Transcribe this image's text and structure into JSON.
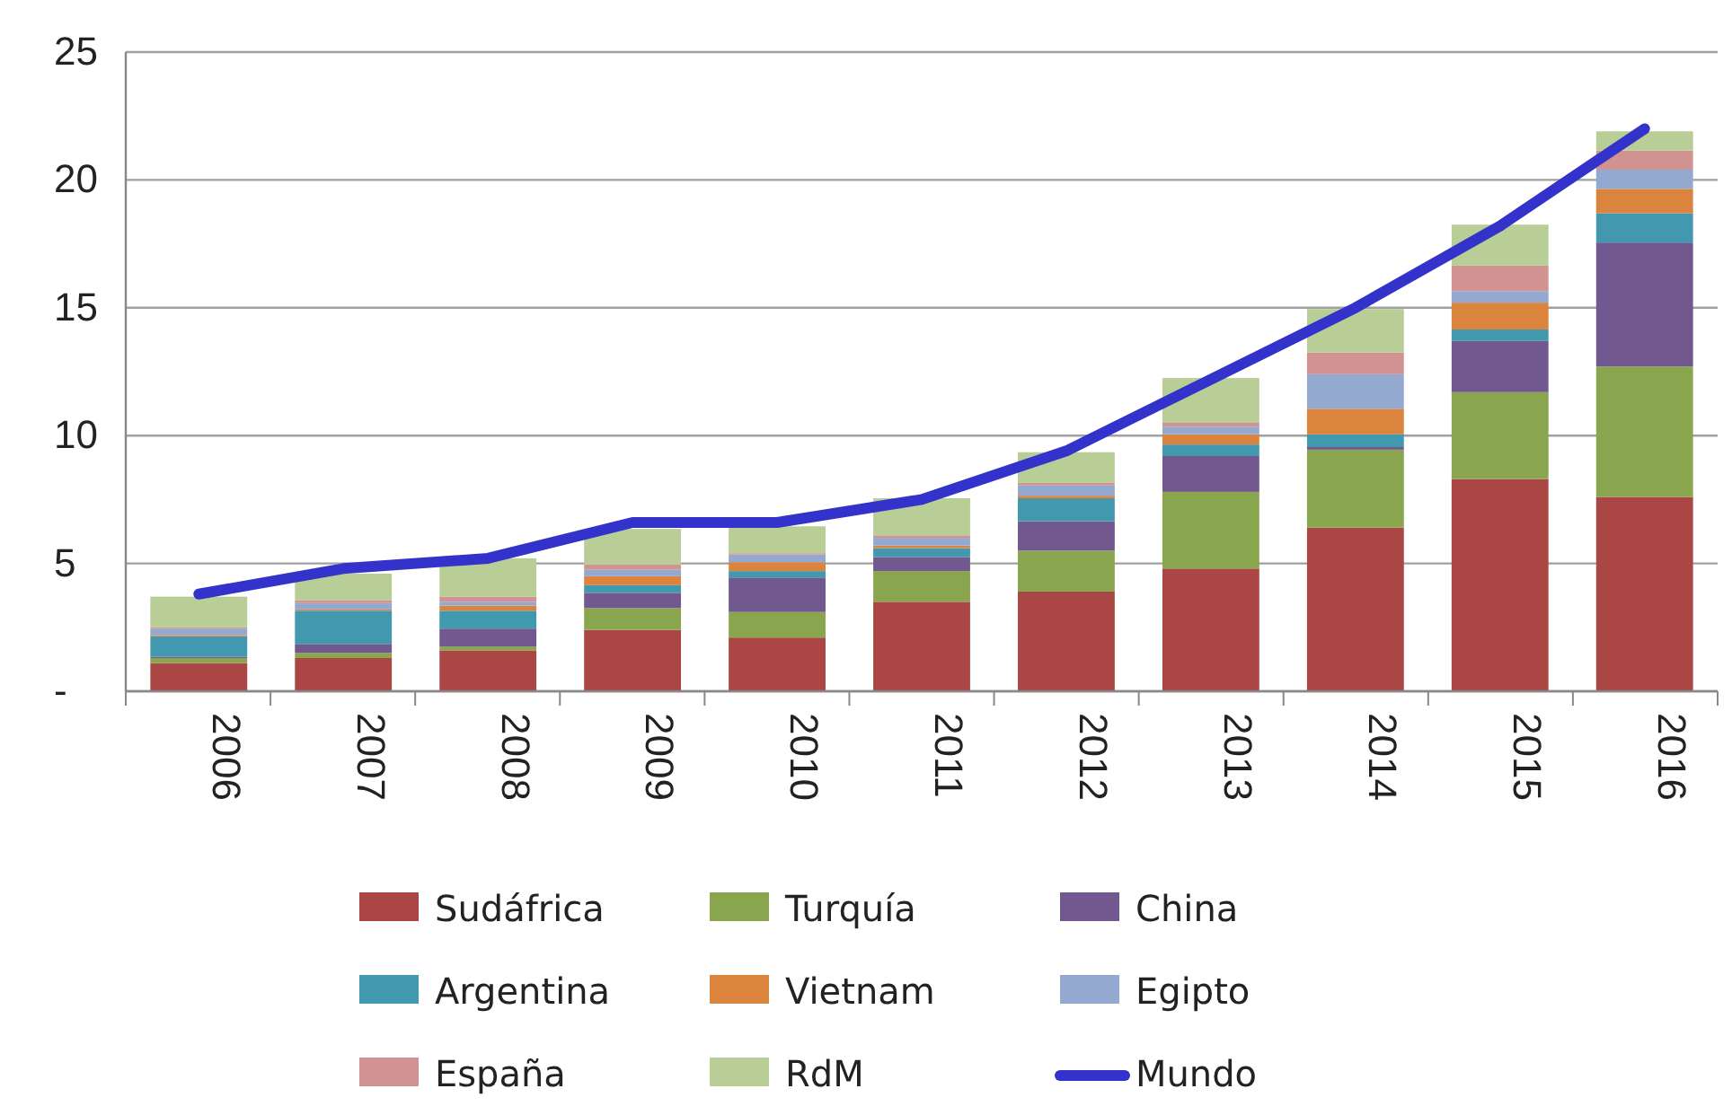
{
  "chart_data": {
    "type": "bar",
    "stacked": true,
    "categories": [
      "2006",
      "2007",
      "2008",
      "2009",
      "2010",
      "2011",
      "2012",
      "2013",
      "2014",
      "2015",
      "2016"
    ],
    "series": [
      {
        "name": "Sudáfrica",
        "color": "#aa4643",
        "values": [
          1.1,
          1.3,
          1.6,
          2.4,
          2.1,
          3.5,
          3.9,
          4.8,
          6.4,
          8.3,
          7.6
        ]
      },
      {
        "name": "Turquía",
        "color": "#89a54e",
        "values": [
          0.2,
          0.2,
          0.15,
          0.85,
          1.0,
          1.2,
          1.6,
          3.0,
          3.05,
          3.4,
          5.1
        ]
      },
      {
        "name": "China",
        "color": "#71588f",
        "values": [
          0.05,
          0.35,
          0.7,
          0.6,
          1.35,
          0.55,
          1.15,
          1.4,
          0.1,
          2.0,
          4.85
        ]
      },
      {
        "name": "Argentina",
        "color": "#4198af",
        "values": [
          0.8,
          1.3,
          0.7,
          0.3,
          0.25,
          0.35,
          0.9,
          0.45,
          0.5,
          0.45,
          1.15
        ]
      },
      {
        "name": "Vietnam",
        "color": "#db843d",
        "values": [
          0.05,
          0.05,
          0.2,
          0.35,
          0.35,
          0.1,
          0.1,
          0.4,
          1.0,
          1.05,
          0.95
        ]
      },
      {
        "name": "Egipto",
        "color": "#93a9cf",
        "values": [
          0.25,
          0.25,
          0.15,
          0.25,
          0.3,
          0.3,
          0.4,
          0.3,
          1.35,
          0.45,
          0.75
        ]
      },
      {
        "name": "España",
        "color": "#d19392",
        "values": [
          0.05,
          0.1,
          0.2,
          0.2,
          0.05,
          0.1,
          0.1,
          0.15,
          0.85,
          1.0,
          0.75
        ]
      },
      {
        "name": "RdM",
        "color": "#b9cd96",
        "values": [
          1.2,
          1.05,
          1.5,
          1.4,
          1.05,
          1.45,
          1.2,
          1.75,
          1.7,
          1.6,
          0.75
        ]
      },
      {
        "name": "Mundo",
        "type": "line",
        "color": "#3333cc",
        "values": [
          3.8,
          4.8,
          5.2,
          6.6,
          6.6,
          7.5,
          9.4,
          12.2,
          15.0,
          18.2,
          22.0
        ]
      }
    ],
    "ylim": [
      0,
      25
    ],
    "yticks": [
      {
        "value": 0,
        "label": "-"
      },
      5,
      10,
      15,
      20,
      25
    ],
    "grid": "y",
    "legend": "bottom",
    "marker": "none"
  }
}
